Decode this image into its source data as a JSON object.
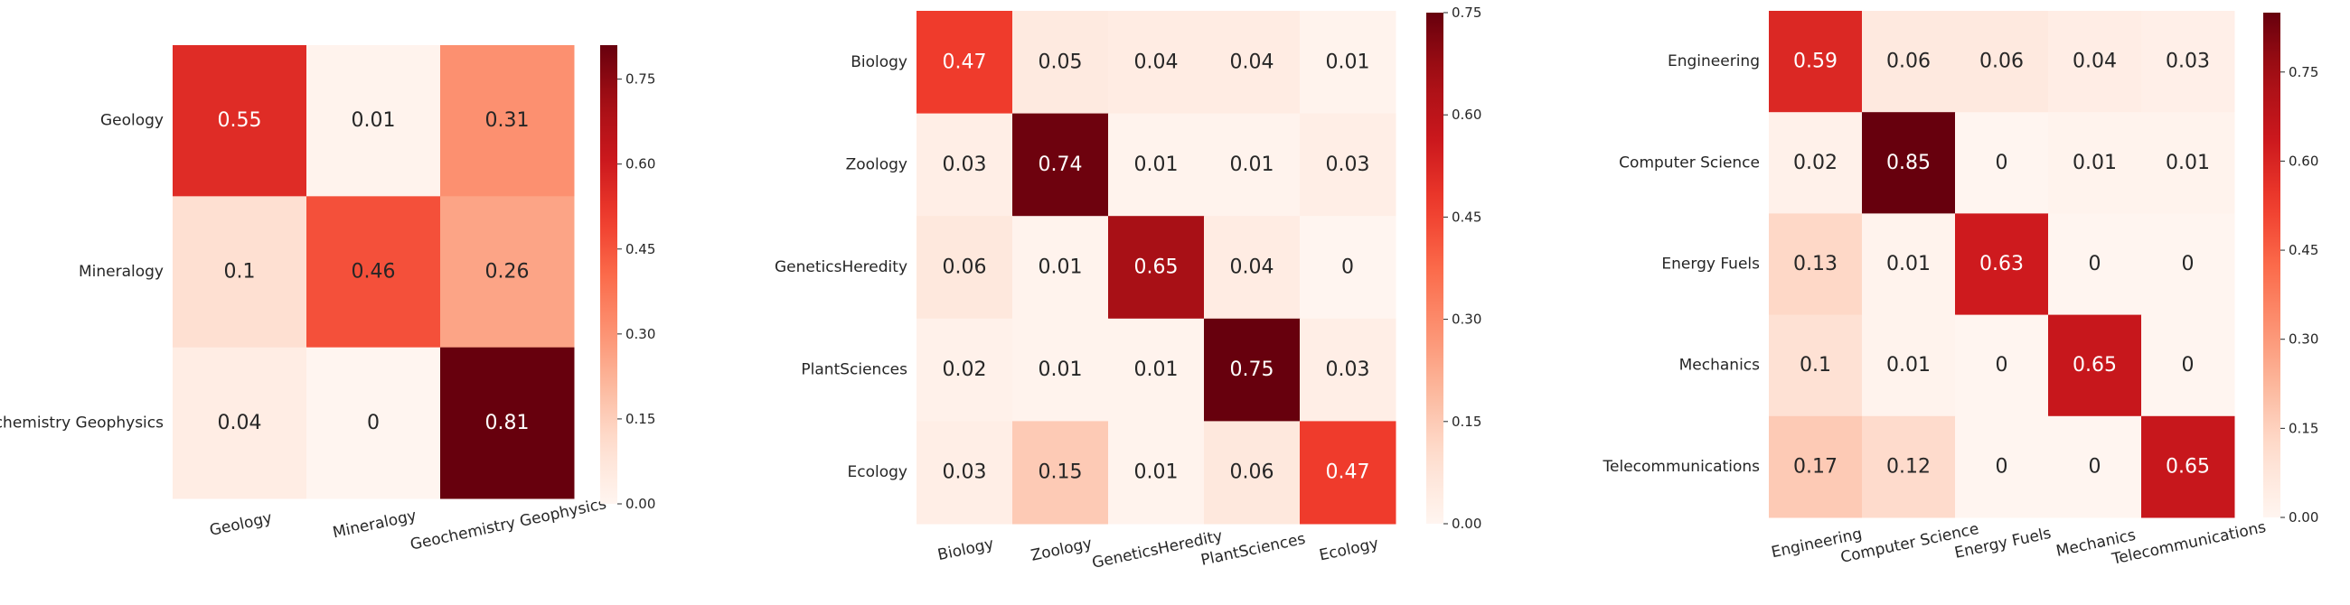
{
  "chart_data": [
    {
      "type": "heatmap",
      "title": "",
      "xlabel": "",
      "ylabel": "",
      "rows": [
        "Geology",
        "Mineralogy",
        "Geochemistry Geophysics"
      ],
      "columns": [
        "Geology",
        "Mineralogy",
        "Geochemistry Geophysics"
      ],
      "values": [
        [
          0.55,
          0.01,
          0.31
        ],
        [
          0.1,
          0.46,
          0.26
        ],
        [
          0.04,
          0,
          0.81
        ]
      ],
      "value_labels": [
        [
          "0.55",
          "0.01",
          "0.31"
        ],
        [
          "0.1",
          "0.46",
          "0.26"
        ],
        [
          "0.04",
          "0",
          "0.81"
        ]
      ],
      "colormap": "Reds",
      "vmin": 0,
      "vmax": 0.81,
      "colorbar_ticks": [
        0,
        0.15,
        0.3,
        0.45,
        0.6,
        0.75
      ],
      "colorbar_tick_labels": [
        "0.00",
        "0.15",
        "0.30",
        "0.45",
        "0.60",
        "0.75"
      ]
    },
    {
      "type": "heatmap",
      "title": "",
      "xlabel": "",
      "ylabel": "",
      "rows": [
        "Biology",
        "Zoology",
        "GeneticsHeredity",
        "PlantSciences",
        "Ecology"
      ],
      "columns": [
        "Biology",
        "Zoology",
        "GeneticsHeredity",
        "PlantSciences",
        "Ecology"
      ],
      "values": [
        [
          0.47,
          0.05,
          0.04,
          0.04,
          0.01
        ],
        [
          0.03,
          0.74,
          0.01,
          0.01,
          0.03
        ],
        [
          0.06,
          0.01,
          0.65,
          0.04,
          0
        ],
        [
          0.02,
          0.01,
          0.01,
          0.75,
          0.03
        ],
        [
          0.03,
          0.15,
          0.01,
          0.06,
          0.47
        ]
      ],
      "value_labels": [
        [
          "0.47",
          "0.05",
          "0.04",
          "0.04",
          "0.01"
        ],
        [
          "0.03",
          "0.74",
          "0.01",
          "0.01",
          "0.03"
        ],
        [
          "0.06",
          "0.01",
          "0.65",
          "0.04",
          "0"
        ],
        [
          "0.02",
          "0.01",
          "0.01",
          "0.75",
          "0.03"
        ],
        [
          "0.03",
          "0.15",
          "0.01",
          "0.06",
          "0.47"
        ]
      ],
      "colormap": "Reds",
      "vmin": 0,
      "vmax": 0.75,
      "colorbar_ticks": [
        0,
        0.15,
        0.3,
        0.45,
        0.6,
        0.75
      ],
      "colorbar_tick_labels": [
        "0.00",
        "0.15",
        "0.30",
        "0.45",
        "0.60",
        "0.75"
      ]
    },
    {
      "type": "heatmap",
      "title": "",
      "xlabel": "",
      "ylabel": "",
      "rows": [
        "Engineering",
        "Computer Science",
        "Energy Fuels",
        "Mechanics",
        "Telecommunications"
      ],
      "columns": [
        "Engineering",
        "Computer Science",
        "Energy Fuels",
        "Mechanics",
        "Telecommunications"
      ],
      "values": [
        [
          0.59,
          0.06,
          0.06,
          0.04,
          0.03
        ],
        [
          0.02,
          0.85,
          0,
          0.01,
          0.01
        ],
        [
          0.13,
          0.01,
          0.63,
          0,
          0
        ],
        [
          0.1,
          0.01,
          0,
          0.65,
          0
        ],
        [
          0.17,
          0.12,
          0,
          0,
          0.65
        ]
      ],
      "value_labels": [
        [
          "0.59",
          "0.06",
          "0.06",
          "0.04",
          "0.03"
        ],
        [
          "0.02",
          "0.85",
          "0",
          "0.01",
          "0.01"
        ],
        [
          "0.13",
          "0.01",
          "0.63",
          "0",
          "0"
        ],
        [
          "0.1",
          "0.01",
          "0",
          "0.65",
          "0"
        ],
        [
          "0.17",
          "0.12",
          "0",
          "0",
          "0.65"
        ]
      ],
      "colormap": "Reds",
      "vmin": 0,
      "vmax": 0.85,
      "colorbar_ticks": [
        0,
        0.15,
        0.3,
        0.45,
        0.6,
        0.75
      ],
      "colorbar_tick_labels": [
        "0.00",
        "0.15",
        "0.30",
        "0.45",
        "0.60",
        "0.75"
      ]
    }
  ]
}
